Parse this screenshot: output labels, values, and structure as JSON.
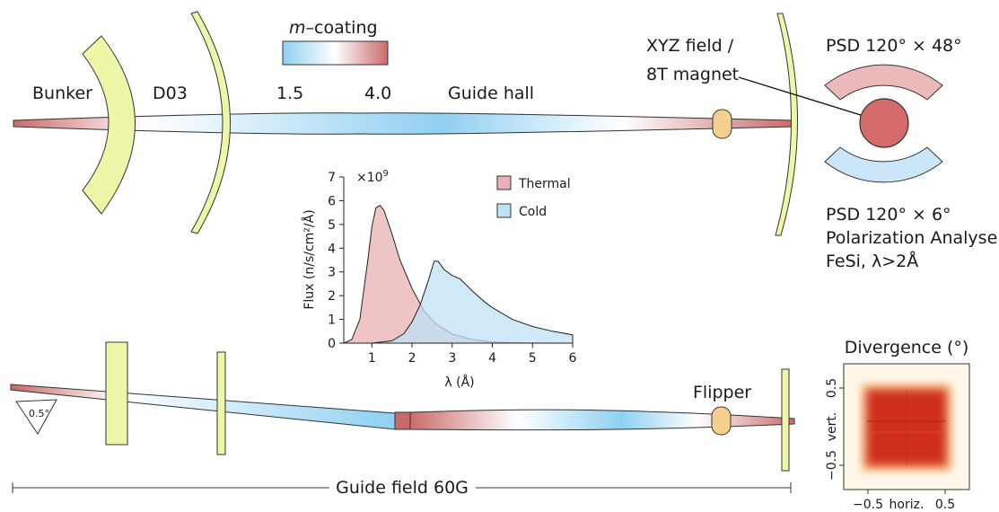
{
  "labels": {
    "bunker": "Bunker",
    "d03": "D03",
    "m15": "1.5",
    "m40": "4.0",
    "guide_hall": "Guide hall",
    "m_coating_m": "m",
    "m_coating_rest": "–coating",
    "xyz_line1": "XYZ field /",
    "xyz_line2": "8T magnet",
    "psd_top": "PSD 120° × 48°",
    "psd_bottom": "PSD 120° × 6°",
    "pol_analyser": "Polarization Analyser",
    "fesi": "FeSi, λ>2Å",
    "flipper": "Flipper",
    "guide_field": "Guide field 60G",
    "angle": "0.5°"
  },
  "colors": {
    "mirror_fill": "#eef7a8",
    "mirror_stroke": "#333333",
    "guide_red": "#c96a6a",
    "guide_white": "#ffffff",
    "guide_blue": "#8fd0f2",
    "thermal": "#e8b0b0",
    "cold": "#bfe2f7",
    "sample": "#d46a6a",
    "component": "#f5cf8e",
    "psd_top": "#ebb9b9",
    "psd_bottom": "#cbe6f8"
  },
  "chart_data": {
    "type": "area",
    "ylabel_main": "Flux (n/s/cm²/Å)",
    "xlabel": "λ (Å)",
    "y_exponent_base": "×10",
    "y_exponent_power": "9",
    "xlim": [
      0.3,
      6
    ],
    "ylim": [
      0,
      7
    ],
    "xticks": [
      "1",
      "2",
      "3",
      "4",
      "5",
      "6"
    ],
    "yticks": [
      "0",
      "1",
      "2",
      "3",
      "4",
      "5",
      "6",
      "7"
    ],
    "legend": [
      "Thermal",
      "Cold"
    ],
    "series": [
      {
        "name": "Thermal",
        "x": [
          0.3,
          0.5,
          0.7,
          0.9,
          1.0,
          1.1,
          1.2,
          1.3,
          1.5,
          1.7,
          2.0,
          2.3,
          2.6,
          3.0,
          3.5,
          4.0,
          4.5,
          5.0,
          5.5,
          6.0
        ],
        "y": [
          0,
          0.15,
          1.0,
          3.5,
          4.9,
          5.7,
          5.8,
          5.6,
          4.6,
          3.5,
          2.3,
          1.35,
          0.8,
          0.38,
          0.15,
          0.05,
          0.02,
          0.01,
          0,
          0
        ]
      },
      {
        "name": "Cold",
        "x": [
          0.3,
          1.0,
          1.5,
          1.8,
          2.0,
          2.2,
          2.4,
          2.55,
          2.65,
          2.8,
          3.0,
          3.2,
          3.5,
          3.8,
          4.0,
          4.5,
          5.0,
          5.5,
          6.0
        ],
        "y": [
          0,
          0,
          0.1,
          0.4,
          0.9,
          1.6,
          2.6,
          3.45,
          3.45,
          3.1,
          2.85,
          2.7,
          2.2,
          1.75,
          1.5,
          1.0,
          0.7,
          0.5,
          0.35
        ]
      }
    ]
  },
  "divergence": {
    "title": "Divergence (°)",
    "xlabel": "horiz.",
    "ylabel": "vert.",
    "xticks": [
      "−0.5",
      "0.5"
    ],
    "yticks": [
      "0.5",
      "−0.5"
    ]
  }
}
